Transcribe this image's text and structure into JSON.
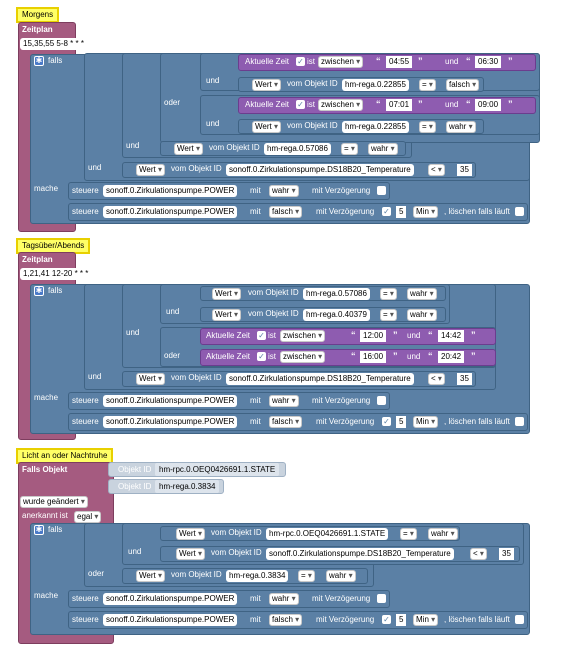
{
  "s1": {
    "title": "Morgens",
    "zeitplan": "Zeitplan",
    "cron": "15,35,55 5-8 * * *",
    "falls": "falls",
    "mache": "mache",
    "und": "und",
    "oder": "oder",
    "t1": {
      "prefix": "Aktuelle Zeit",
      "ist": "ist",
      "op": "zwischen",
      "from": "04:55",
      "und": "und",
      "to": "06:30"
    },
    "w1": {
      "wert": "Wert",
      "vom": "vom Objekt ID",
      "obj": "hm-rega.0.22855",
      "cmp": "=",
      "val": "falsch"
    },
    "t2": {
      "prefix": "Aktuelle Zeit",
      "ist": "ist",
      "op": "zwischen",
      "from": "07:01",
      "und": "und",
      "to": "09:00"
    },
    "w2": {
      "wert": "Wert",
      "vom": "vom Objekt ID",
      "obj": "hm-rega.0.22855",
      "cmp": "=",
      "val": "wahr"
    },
    "w3": {
      "wert": "Wert",
      "vom": "vom Objekt ID",
      "obj": "hm-rega.0.57086",
      "cmp": "=",
      "val": "wahr"
    },
    "w4": {
      "wert": "Wert",
      "vom": "vom Objekt ID",
      "obj": "sonoff.0.Zirkulationspumpe.DS18B20_Temperature",
      "cmp": "<",
      "val": "35"
    },
    "c1": {
      "steuere": "steuere",
      "obj": "sonoff.0.Zirkulationspumpe.POWER",
      "mit": "mit",
      "val": "wahr",
      "delay": "mit Verzögerung"
    },
    "c2": {
      "steuere": "steuere",
      "obj": "sonoff.0.Zirkulationspumpe.POWER",
      "mit": "mit",
      "val": "falsch",
      "delay": "mit Verzögerung",
      "num": "5",
      "unit": "Min",
      "clear": ", löschen falls läuft"
    }
  },
  "s2": {
    "title": "Tagsüber/Abends",
    "zeitplan": "Zeitplan",
    "cron": "1,21,41 12-20 * * *",
    "falls": "falls",
    "mache": "mache",
    "und": "und",
    "oder": "oder",
    "w1": {
      "wert": "Wert",
      "vom": "vom Objekt ID",
      "obj": "hm-rega.0.57086",
      "cmp": "=",
      "val": "wahr"
    },
    "w2": {
      "wert": "Wert",
      "vom": "vom Objekt ID",
      "obj": "hm-rega.0.40379",
      "cmp": "=",
      "val": "wahr"
    },
    "t1": {
      "prefix": "Aktuelle Zeit",
      "ist": "ist",
      "op": "zwischen",
      "from": "12:00",
      "und": "und",
      "to": "14:42"
    },
    "t2": {
      "prefix": "Aktuelle Zeit",
      "ist": "ist",
      "op": "zwischen",
      "from": "16:00",
      "und": "und",
      "to": "20:42"
    },
    "w3": {
      "wert": "Wert",
      "vom": "vom Objekt ID",
      "obj": "sonoff.0.Zirkulationspumpe.DS18B20_Temperature",
      "cmp": "<",
      "val": "35"
    },
    "c1": {
      "steuere": "steuere",
      "obj": "sonoff.0.Zirkulationspumpe.POWER",
      "mit": "mit",
      "val": "wahr",
      "delay": "mit Verzögerung"
    },
    "c2": {
      "steuere": "steuere",
      "obj": "sonoff.0.Zirkulationspumpe.POWER",
      "mit": "mit",
      "val": "falsch",
      "delay": "mit Verzögerung",
      "num": "5",
      "unit": "Min",
      "clear": ", löschen falls läuft"
    }
  },
  "s3": {
    "title": "Licht an oder Nachtruhe",
    "falls_obj": "Falls Objekt",
    "obj_id": "Objekt ID",
    "o1": "hm-rpc.0.OEQ0426691.1.STATE",
    "o2": "hm-rega.0.3834",
    "changed": "wurde geändert",
    "ack_label": "anerkannt ist",
    "ack": "egal",
    "falls": "falls",
    "mache": "mache",
    "und": "und",
    "oder": "oder",
    "w1": {
      "wert": "Wert",
      "vom": "vom Objekt ID",
      "obj": "hm-rpc.0.OEQ0426691.1.STATE",
      "cmp": "=",
      "val": "wahr"
    },
    "w2": {
      "wert": "Wert",
      "vom": "vom Objekt ID",
      "obj": "sonoff.0.Zirkulationspumpe.DS18B20_Temperature",
      "cmp": "<",
      "val": "35"
    },
    "w3": {
      "wert": "Wert",
      "vom": "vom Objekt ID",
      "obj": "hm-rega.0.3834",
      "cmp": "=",
      "val": "wahr"
    },
    "c1": {
      "steuere": "steuere",
      "obj": "sonoff.0.Zirkulationspumpe.POWER",
      "mit": "mit",
      "val": "wahr",
      "delay": "mit Verzögerung"
    },
    "c2": {
      "steuere": "steuere",
      "obj": "sonoff.0.Zirkulationspumpe.POWER",
      "mit": "mit",
      "val": "falsch",
      "delay": "mit Verzögerung",
      "num": "5",
      "unit": "Min",
      "clear": ", löschen falls läuft"
    }
  }
}
